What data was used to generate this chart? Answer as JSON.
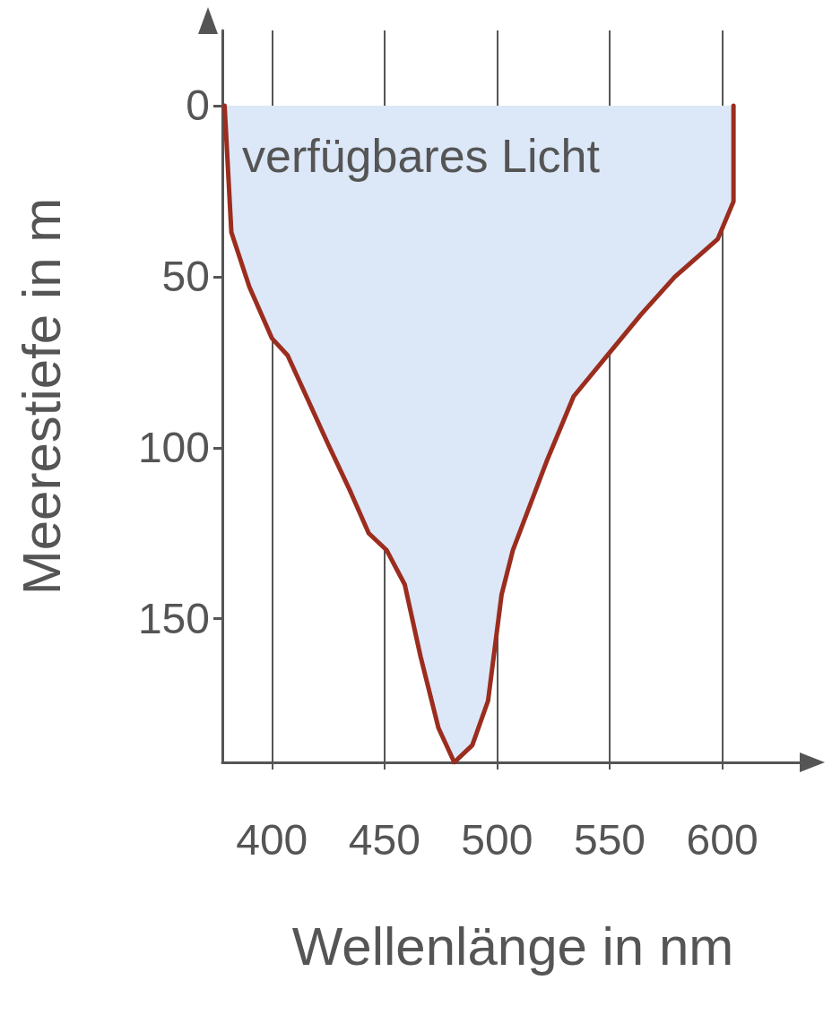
{
  "chart_data": {
    "type": "area",
    "xlabel": "Wellenlänge in nm",
    "ylabel": "Meerestiefe in m",
    "annotations": [
      "verfügbares Licht"
    ],
    "x": [
      379,
      382,
      390,
      400,
      407,
      416,
      425,
      435,
      443,
      451,
      459,
      466,
      474,
      481,
      489,
      496,
      502,
      507,
      522,
      534,
      549,
      564,
      579,
      598,
      605,
      605
    ],
    "series": [
      {
        "color": "#9b2d1f",
        "values": [
          0,
          37,
          53,
          68,
          73,
          86,
          99,
          113,
          125,
          130,
          140,
          161,
          182,
          192,
          187,
          174,
          143,
          130,
          104,
          85,
          73,
          61,
          50,
          39,
          28,
          0
        ]
      }
    ],
    "xlim": [
      378,
      636
    ],
    "xticks": [
      400,
      450,
      500,
      550,
      600
    ],
    "ylim": [
      192,
      -22
    ],
    "yticks": [
      0,
      50,
      100,
      150
    ],
    "grid": "x",
    "marker": "none",
    "line_style": "solid"
  }
}
